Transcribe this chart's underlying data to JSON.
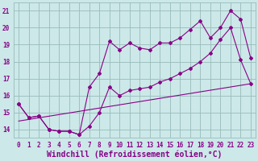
{
  "xlabel": "Windchill (Refroidissement éolien,°C)",
  "background_color": "#cce8e8",
  "line_color": "#880088",
  "xlim": [
    -0.5,
    23.5
  ],
  "ylim": [
    13.5,
    21.5
  ],
  "yticks": [
    14,
    15,
    16,
    17,
    18,
    19,
    20,
    21
  ],
  "xticks": [
    0,
    1,
    2,
    3,
    4,
    5,
    6,
    7,
    8,
    9,
    10,
    11,
    12,
    13,
    14,
    15,
    16,
    17,
    18,
    19,
    20,
    21,
    22,
    23
  ],
  "line1_x": [
    0,
    1,
    2,
    3,
    4,
    5,
    6,
    7,
    8,
    9,
    10,
    11,
    12,
    13,
    14,
    15,
    16,
    17,
    18,
    19,
    20,
    21,
    22,
    23
  ],
  "line1_y": [
    15.5,
    14.7,
    14.8,
    14.0,
    13.9,
    13.9,
    13.7,
    16.5,
    17.3,
    19.2,
    18.7,
    19.1,
    18.8,
    18.7,
    19.1,
    19.1,
    19.4,
    19.9,
    20.4,
    19.4,
    20.0,
    21.0,
    20.5,
    18.2
  ],
  "line2_x": [
    0,
    1,
    2,
    3,
    4,
    5,
    6,
    7,
    8,
    9,
    10,
    11,
    12,
    13,
    14,
    15,
    16,
    17,
    18,
    19,
    20,
    21,
    22,
    23
  ],
  "line2_y": [
    15.5,
    14.7,
    14.8,
    14.0,
    13.9,
    13.9,
    13.7,
    14.2,
    15.0,
    16.5,
    16.0,
    16.3,
    16.4,
    16.5,
    16.8,
    17.0,
    17.3,
    17.6,
    18.0,
    18.5,
    19.3,
    20.0,
    18.1,
    16.7
  ],
  "line3_x": [
    0,
    23
  ],
  "line3_y": [
    14.5,
    16.7
  ],
  "grid_color": "#99bbbb",
  "tick_fontsize": 5.5,
  "xlabel_fontsize": 7.0
}
